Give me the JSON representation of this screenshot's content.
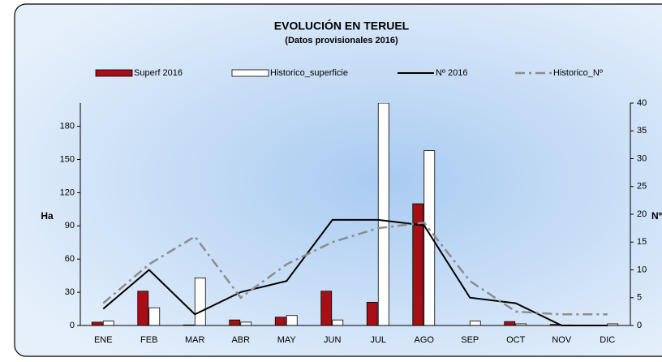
{
  "chart_data": {
    "type": "bar",
    "title": "EVOLUCIÓN EN TERUEL",
    "subtitle": "(Datos provisionales 2016)",
    "y_label": "Ha",
    "y2_label": "Nº",
    "categories": [
      "ENE",
      "FEB",
      "MAR",
      "ABR",
      "MAY",
      "JUN",
      "JUL",
      "AGO",
      "SEP",
      "OCT",
      "NOV",
      "DIC"
    ],
    "series": [
      {
        "name": "Superf 2016",
        "type": "bar",
        "color": "#a50f15",
        "values": [
          3,
          31,
          0.5,
          5,
          7.5,
          31,
          21,
          110,
          0,
          3.5,
          1,
          0
        ]
      },
      {
        "name": "Historico_superficie",
        "type": "bar",
        "color": "#ffffff",
        "values": [
          4,
          16,
          43,
          3,
          9,
          5,
          201,
          158,
          4,
          1.5,
          0.5,
          1.5
        ]
      },
      {
        "name": "Nº 2016",
        "type": "line",
        "axis": "y2",
        "color": "#000000",
        "values": [
          3,
          10,
          2,
          6,
          8,
          19,
          19,
          18,
          5,
          4,
          0,
          0
        ]
      },
      {
        "name": "Historico_Nº",
        "type": "line",
        "axis": "y2",
        "dashed": true,
        "color": "#8c8c8c",
        "values": [
          4,
          11,
          16,
          5,
          11,
          15,
          17.5,
          18.5,
          8,
          2.5,
          2,
          2
        ]
      }
    ],
    "ylim": [
      0,
      201
    ],
    "yticks": [
      0,
      30,
      60,
      90,
      120,
      150,
      180
    ],
    "y2lim": [
      0,
      40
    ],
    "y2ticks": [
      0,
      5,
      10,
      15,
      20,
      25,
      30,
      35,
      40
    ],
    "legend": "top",
    "grid": false
  }
}
